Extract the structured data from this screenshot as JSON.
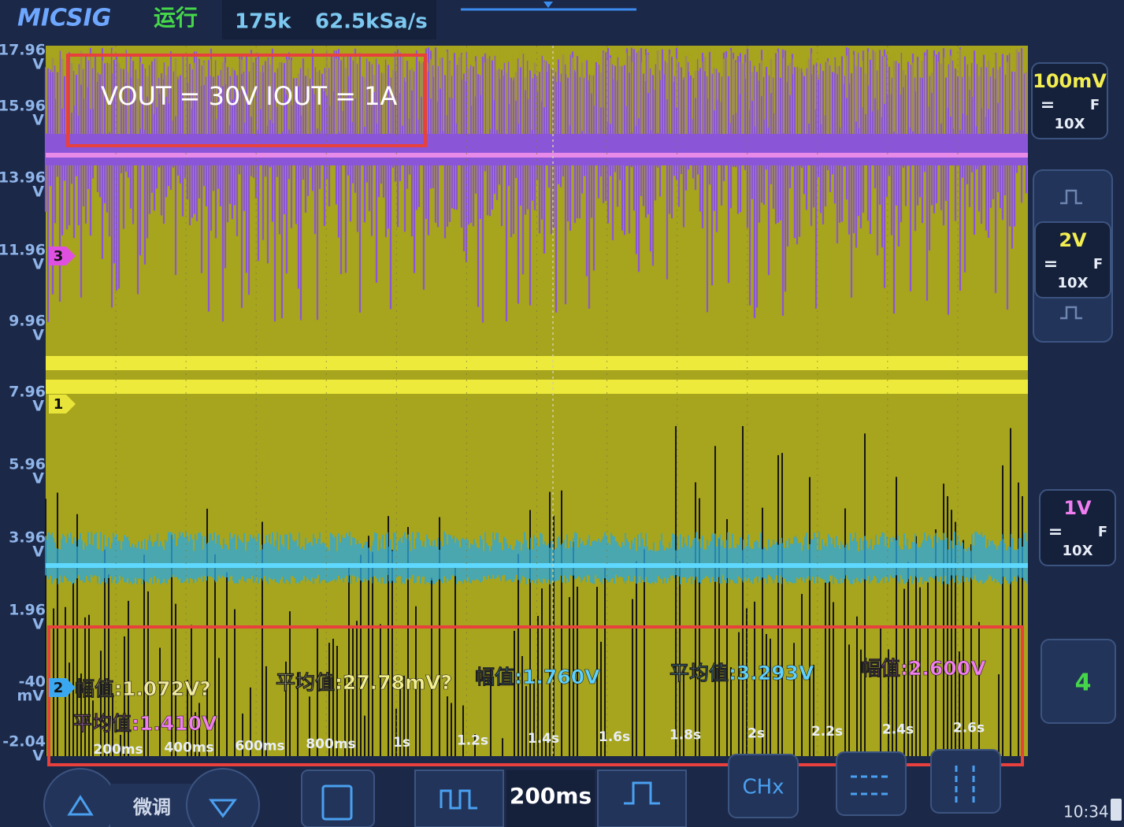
{
  "header": {
    "brand": "MICSIG",
    "status": "运行",
    "memory_depth": "175k",
    "sample_rate": "62.5kSa/s"
  },
  "annotation": "VOUT = 30V IOUT = 1A",
  "y_scale": [
    {
      "value": "17.96",
      "unit": "V"
    },
    {
      "value": "15.96",
      "unit": "V"
    },
    {
      "value": "13.96",
      "unit": "V"
    },
    {
      "value": "11.96",
      "unit": "V"
    },
    {
      "value": "9.96",
      "unit": "V"
    },
    {
      "value": "7.96",
      "unit": "V"
    },
    {
      "value": "5.96",
      "unit": "V"
    },
    {
      "value": "3.96",
      "unit": "V"
    },
    {
      "value": "1.96",
      "unit": "V"
    },
    {
      "value": "-40",
      "unit": "mV"
    },
    {
      "value": "-2.04",
      "unit": "V"
    }
  ],
  "channel_markers": [
    "3",
    "1",
    "2"
  ],
  "channels": [
    {
      "scale": "100mV",
      "coupling": "=",
      "bandwidth": "F",
      "probe": "10X"
    },
    {
      "scale": "2V",
      "coupling": "=",
      "bandwidth": "F",
      "probe": "10X"
    },
    {
      "scale": "1V",
      "coupling": "=",
      "bandwidth": "F",
      "probe": "10X"
    }
  ],
  "channel_4": "4",
  "measurements": [
    "幅值:1.072V?",
    "平均值:27.78mV?",
    "幅值:1.760V",
    "平均值:3.293V",
    "幅值:2.600V",
    "平均值:1.410V"
  ],
  "time_labels": [
    "200ms",
    "400ms",
    "600ms",
    "800ms",
    "1s",
    "1.2s",
    "1.4s",
    "1.6s",
    "1.8s",
    "2s",
    "2.2s",
    "2.4s",
    "2.6s"
  ],
  "controls": {
    "fine_adjust": "微调",
    "timebase": "200ms",
    "channel_select": "CHx"
  },
  "clock": "10:34"
}
